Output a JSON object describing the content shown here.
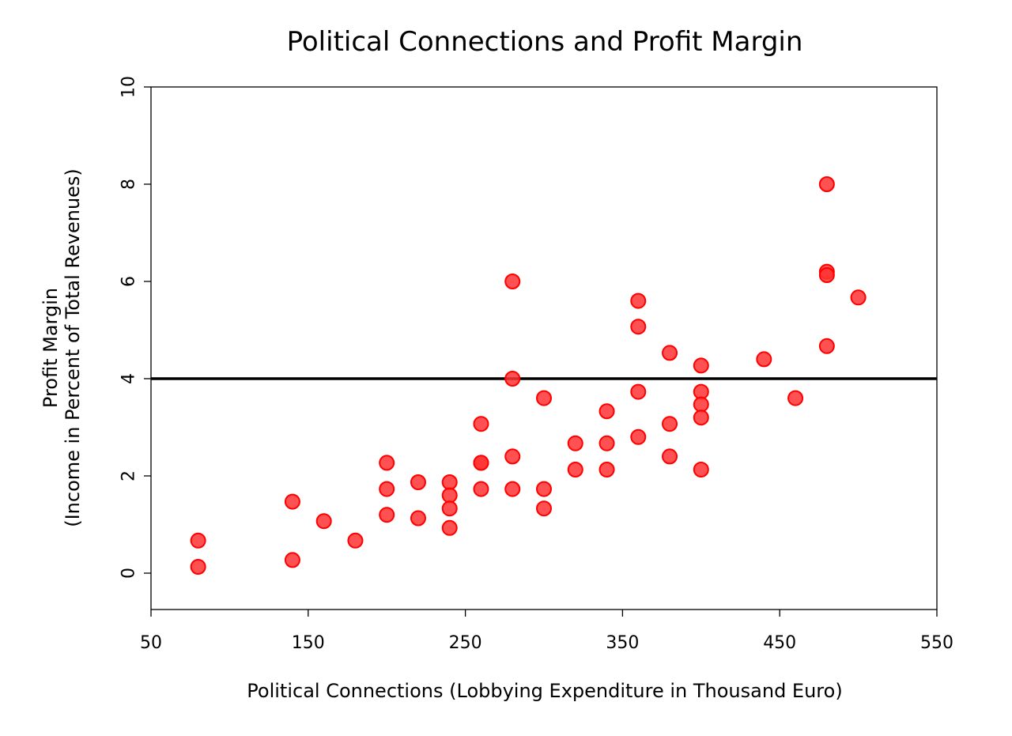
{
  "chart_data": {
    "type": "scatter",
    "title": "Political Connections and Profit Margin",
    "xlabel": "Political Connections (Lobbying Expenditure in Thousand Euro)",
    "ylabel_line1": "Profit Margin",
    "ylabel_line2": "(Income in Percent of Total Revenues)",
    "xlim": [
      50,
      550
    ],
    "ylim": [
      -0.75,
      10
    ],
    "xticks": [
      "50",
      "150",
      "250",
      "350",
      "450",
      "550"
    ],
    "yticks": [
      "0",
      "2",
      "4",
      "6",
      "8",
      "10"
    ],
    "xtick_values": [
      50,
      150,
      250,
      350,
      450,
      550
    ],
    "ytick_values": [
      0,
      2,
      4,
      6,
      8,
      10
    ],
    "hline_y": 4,
    "point_color": "#ff0000",
    "point_fill": "#ff3333",
    "line_color": "#000000",
    "points": [
      [
        80,
        0.67
      ],
      [
        80,
        0.13
      ],
      [
        140,
        1.47
      ],
      [
        140,
        0.27
      ],
      [
        160,
        1.07
      ],
      [
        180,
        0.67
      ],
      [
        200,
        2.27
      ],
      [
        200,
        1.73
      ],
      [
        200,
        1.2
      ],
      [
        220,
        1.87
      ],
      [
        220,
        1.13
      ],
      [
        240,
        1.87
      ],
      [
        240,
        1.6
      ],
      [
        240,
        1.33
      ],
      [
        240,
        0.93
      ],
      [
        260,
        3.07
      ],
      [
        260,
        2.27
      ],
      [
        260,
        2.27
      ],
      [
        260,
        1.73
      ],
      [
        280,
        6.0
      ],
      [
        280,
        4.0
      ],
      [
        280,
        2.4
      ],
      [
        280,
        1.73
      ],
      [
        300,
        3.6
      ],
      [
        300,
        1.73
      ],
      [
        300,
        1.33
      ],
      [
        320,
        2.67
      ],
      [
        320,
        2.13
      ],
      [
        340,
        3.33
      ],
      [
        340,
        2.67
      ],
      [
        340,
        2.13
      ],
      [
        360,
        5.6
      ],
      [
        360,
        5.07
      ],
      [
        360,
        3.73
      ],
      [
        360,
        2.8
      ],
      [
        380,
        4.53
      ],
      [
        380,
        3.07
      ],
      [
        380,
        2.4
      ],
      [
        400,
        4.27
      ],
      [
        400,
        3.73
      ],
      [
        400,
        3.47
      ],
      [
        400,
        3.2
      ],
      [
        400,
        2.13
      ],
      [
        440,
        4.4
      ],
      [
        460,
        3.6
      ],
      [
        480,
        8.0
      ],
      [
        480,
        6.2
      ],
      [
        480,
        6.13
      ],
      [
        480,
        4.67
      ],
      [
        500,
        5.67
      ]
    ]
  }
}
